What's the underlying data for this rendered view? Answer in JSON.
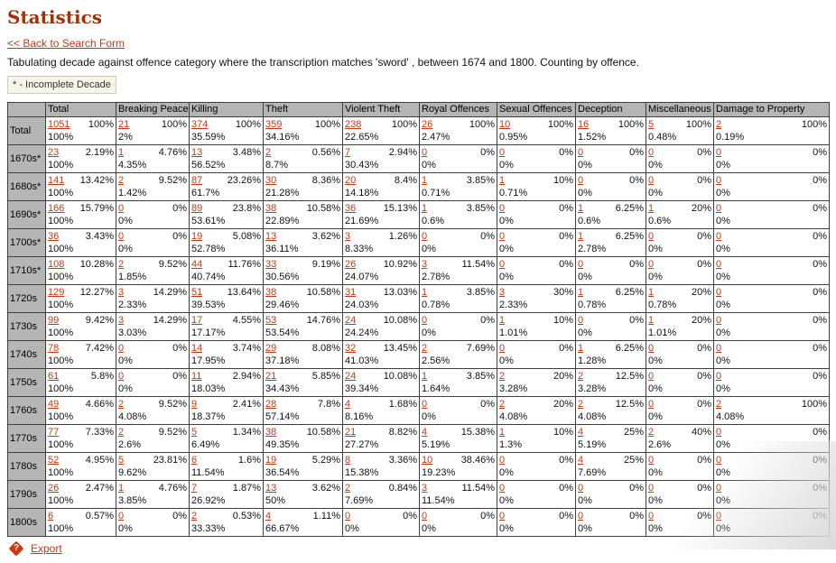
{
  "page": {
    "title": "Statistics",
    "back_link": "<< Back to Search Form",
    "description": "Tabulating decade against offence category where the transcription matches 'sword' , between 1674 and 1800. Counting by offence.",
    "legend_note": "* - Incomplete Decade",
    "export_label": "Export",
    "help_icon": "question-mark-diamond-icon"
  },
  "colors": {
    "heading": "#a33008",
    "link": "#c23a10",
    "table_header_bg": "#b5b5b5",
    "table_border": "#3f3f3f",
    "help_icon_bg": "#cc3a0e"
  },
  "chart_data": {
    "type": "table",
    "title": "Statistics",
    "row_dimension": "decade",
    "column_dimension": "offence category",
    "cell_format": [
      "count",
      "column_percent",
      "row_percent"
    ],
    "columns": [
      "Total",
      "Breaking Peace",
      "Killing",
      "Theft",
      "Violent Theft",
      "Royal Offences",
      "Sexual Offences",
      "Deception",
      "Miscellaneous",
      "Damage to Property"
    ],
    "rows": [
      {
        "label": "Total",
        "cells": [
          [
            "1051",
            "100%",
            "100%"
          ],
          [
            "21",
            "100%",
            "2%"
          ],
          [
            "374",
            "100%",
            "35.59%"
          ],
          [
            "359",
            "100%",
            "34.16%"
          ],
          [
            "238",
            "100%",
            "22.65%"
          ],
          [
            "26",
            "100%",
            "2.47%"
          ],
          [
            "10",
            "100%",
            "0.95%"
          ],
          [
            "16",
            "100%",
            "1.52%"
          ],
          [
            "5",
            "100%",
            "0.48%"
          ],
          [
            "2",
            "100%",
            "0.19%"
          ]
        ]
      },
      {
        "label": "1670s*",
        "cells": [
          [
            "23",
            "2.19%",
            "100%"
          ],
          [
            "1",
            "4.76%",
            "4.35%"
          ],
          [
            "13",
            "3.48%",
            "56.52%"
          ],
          [
            "2",
            "0.56%",
            "8.7%"
          ],
          [
            "7",
            "2.94%",
            "30.43%"
          ],
          [
            "0",
            "0%",
            "0%"
          ],
          [
            "0",
            "0%",
            "0%"
          ],
          [
            "0",
            "0%",
            "0%"
          ],
          [
            "0",
            "0%",
            "0%"
          ],
          [
            "0",
            "0%",
            "0%"
          ]
        ]
      },
      {
        "label": "1680s*",
        "cells": [
          [
            "141",
            "13.42%",
            "100%"
          ],
          [
            "2",
            "9.52%",
            "1.42%"
          ],
          [
            "87",
            "23.26%",
            "61.7%"
          ],
          [
            "30",
            "8.36%",
            "21.28%"
          ],
          [
            "20",
            "8.4%",
            "14.18%"
          ],
          [
            "1",
            "3.85%",
            "0.71%"
          ],
          [
            "1",
            "10%",
            "0.71%"
          ],
          [
            "0",
            "0%",
            "0%"
          ],
          [
            "0",
            "0%",
            "0%"
          ],
          [
            "0",
            "0%",
            "0%"
          ]
        ]
      },
      {
        "label": "1690s*",
        "cells": [
          [
            "166",
            "15.79%",
            "100%"
          ],
          [
            "0",
            "0%",
            "0%"
          ],
          [
            "89",
            "23.8%",
            "53.61%"
          ],
          [
            "38",
            "10.58%",
            "22.89%"
          ],
          [
            "36",
            "15.13%",
            "21.69%"
          ],
          [
            "1",
            "3.85%",
            "0.6%"
          ],
          [
            "0",
            "0%",
            "0%"
          ],
          [
            "1",
            "6.25%",
            "0.6%"
          ],
          [
            "1",
            "20%",
            "0.6%"
          ],
          [
            "0",
            "0%",
            "0%"
          ]
        ]
      },
      {
        "label": "1700s*",
        "cells": [
          [
            "36",
            "3.43%",
            "100%"
          ],
          [
            "0",
            "0%",
            "0%"
          ],
          [
            "19",
            "5.08%",
            "52.78%"
          ],
          [
            "13",
            "3.62%",
            "36.11%"
          ],
          [
            "3",
            "1.26%",
            "8.33%"
          ],
          [
            "0",
            "0%",
            "0%"
          ],
          [
            "0",
            "0%",
            "0%"
          ],
          [
            "1",
            "6.25%",
            "2.78%"
          ],
          [
            "0",
            "0%",
            "0%"
          ],
          [
            "0",
            "0%",
            "0%"
          ]
        ]
      },
      {
        "label": "1710s*",
        "cells": [
          [
            "108",
            "10.28%",
            "100%"
          ],
          [
            "2",
            "9.52%",
            "1.85%"
          ],
          [
            "44",
            "11.76%",
            "40.74%"
          ],
          [
            "33",
            "9.19%",
            "30.56%"
          ],
          [
            "26",
            "10.92%",
            "24.07%"
          ],
          [
            "3",
            "11.54%",
            "2.78%"
          ],
          [
            "0",
            "0%",
            "0%"
          ],
          [
            "0",
            "0%",
            "0%"
          ],
          [
            "0",
            "0%",
            "0%"
          ],
          [
            "0",
            "0%",
            "0%"
          ]
        ]
      },
      {
        "label": "1720s",
        "cells": [
          [
            "129",
            "12.27%",
            "100%"
          ],
          [
            "3",
            "14.29%",
            "2.33%"
          ],
          [
            "51",
            "13.64%",
            "39.53%"
          ],
          [
            "38",
            "10.58%",
            "29.46%"
          ],
          [
            "31",
            "13.03%",
            "24.03%"
          ],
          [
            "1",
            "3.85%",
            "0.78%"
          ],
          [
            "3",
            "30%",
            "2.33%"
          ],
          [
            "1",
            "6.25%",
            "0.78%"
          ],
          [
            "1",
            "20%",
            "0.78%"
          ],
          [
            "0",
            "0%",
            "0%"
          ]
        ]
      },
      {
        "label": "1730s",
        "cells": [
          [
            "99",
            "9.42%",
            "100%"
          ],
          [
            "3",
            "14.29%",
            "3.03%"
          ],
          [
            "17",
            "4.55%",
            "17.17%"
          ],
          [
            "53",
            "14.76%",
            "53.54%"
          ],
          [
            "24",
            "10.08%",
            "24.24%"
          ],
          [
            "0",
            "0%",
            "0%"
          ],
          [
            "1",
            "10%",
            "1.01%"
          ],
          [
            "0",
            "0%",
            "0%"
          ],
          [
            "1",
            "20%",
            "1.01%"
          ],
          [
            "0",
            "0%",
            "0%"
          ]
        ]
      },
      {
        "label": "1740s",
        "cells": [
          [
            "78",
            "7.42%",
            "100%"
          ],
          [
            "0",
            "0%",
            "0%"
          ],
          [
            "14",
            "3.74%",
            "17.95%"
          ],
          [
            "29",
            "8.08%",
            "37.18%"
          ],
          [
            "32",
            "13.45%",
            "41.03%"
          ],
          [
            "2",
            "7.69%",
            "2.56%"
          ],
          [
            "0",
            "0%",
            "0%"
          ],
          [
            "1",
            "6.25%",
            "1.28%"
          ],
          [
            "0",
            "0%",
            "0%"
          ],
          [
            "0",
            "0%",
            "0%"
          ]
        ]
      },
      {
        "label": "1750s",
        "cells": [
          [
            "61",
            "5.8%",
            "100%"
          ],
          [
            "0",
            "0%",
            "0%"
          ],
          [
            "11",
            "2.94%",
            "18.03%"
          ],
          [
            "21",
            "5.85%",
            "34.43%"
          ],
          [
            "24",
            "10.08%",
            "39.34%"
          ],
          [
            "1",
            "3.85%",
            "1.64%"
          ],
          [
            "2",
            "20%",
            "3.28%"
          ],
          [
            "2",
            "12.5%",
            "3.28%"
          ],
          [
            "0",
            "0%",
            "0%"
          ],
          [
            "0",
            "0%",
            "0%"
          ]
        ]
      },
      {
        "label": "1760s",
        "cells": [
          [
            "49",
            "4.66%",
            "100%"
          ],
          [
            "2",
            "9.52%",
            "4.08%"
          ],
          [
            "9",
            "2.41%",
            "18.37%"
          ],
          [
            "28",
            "7.8%",
            "57.14%"
          ],
          [
            "4",
            "1.68%",
            "8.16%"
          ],
          [
            "0",
            "0%",
            "0%"
          ],
          [
            "2",
            "20%",
            "4.08%"
          ],
          [
            "2",
            "12.5%",
            "4.08%"
          ],
          [
            "0",
            "0%",
            "0%"
          ],
          [
            "2",
            "100%",
            "4.08%"
          ]
        ]
      },
      {
        "label": "1770s",
        "cells": [
          [
            "77",
            "7.33%",
            "100%"
          ],
          [
            "2",
            "9.52%",
            "2.6%"
          ],
          [
            "5",
            "1.34%",
            "6.49%"
          ],
          [
            "38",
            "10.58%",
            "49.35%"
          ],
          [
            "21",
            "8.82%",
            "27.27%"
          ],
          [
            "4",
            "15.38%",
            "5.19%"
          ],
          [
            "1",
            "10%",
            "1.3%"
          ],
          [
            "4",
            "25%",
            "5.19%"
          ],
          [
            "2",
            "40%",
            "2.6%"
          ],
          [
            "0",
            "0%",
            "0%"
          ]
        ]
      },
      {
        "label": "1780s",
        "cells": [
          [
            "52",
            "4.95%",
            "100%"
          ],
          [
            "5",
            "23.81%",
            "9.62%"
          ],
          [
            "6",
            "1.6%",
            "11.54%"
          ],
          [
            "19",
            "5.29%",
            "36.54%"
          ],
          [
            "8",
            "3.36%",
            "15.38%"
          ],
          [
            "10",
            "38.46%",
            "19.23%"
          ],
          [
            "0",
            "0%",
            "0%"
          ],
          [
            "4",
            "25%",
            "7.69%"
          ],
          [
            "0",
            "0%",
            "0%"
          ],
          [
            "0",
            "0%",
            "0%"
          ]
        ]
      },
      {
        "label": "1790s",
        "cells": [
          [
            "26",
            "2.47%",
            "100%"
          ],
          [
            "1",
            "4.76%",
            "3.85%"
          ],
          [
            "7",
            "1.87%",
            "26.92%"
          ],
          [
            "13",
            "3.62%",
            "50%"
          ],
          [
            "2",
            "0.84%",
            "7.69%"
          ],
          [
            "3",
            "11.54%",
            "11.54%"
          ],
          [
            "0",
            "0%",
            "0%"
          ],
          [
            "0",
            "0%",
            "0%"
          ],
          [
            "0",
            "0%",
            "0%"
          ],
          [
            "0",
            "0%",
            "0%"
          ]
        ]
      },
      {
        "label": "1800s",
        "cells": [
          [
            "6",
            "0.57%",
            "100%"
          ],
          [
            "0",
            "0%",
            "0%"
          ],
          [
            "2",
            "0.53%",
            "33.33%"
          ],
          [
            "4",
            "1.11%",
            "66.67%"
          ],
          [
            "0",
            "0%",
            "0%"
          ],
          [
            "0",
            "0%",
            "0%"
          ],
          [
            "0",
            "0%",
            "0%"
          ],
          [
            "0",
            "0%",
            "0%"
          ],
          [
            "0",
            "0%",
            "0%"
          ],
          [
            "0",
            "0%",
            "0%"
          ]
        ]
      }
    ]
  }
}
